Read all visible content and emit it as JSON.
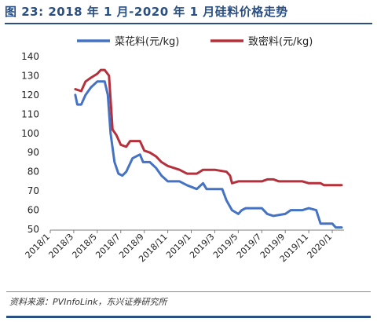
{
  "figure": {
    "title": "图 23: 2018 年 1 月-2020 年 1 月硅料价格走势",
    "source": "资料来源：PVInfoLink，东兴证券研究所"
  },
  "colors": {
    "title": "#2a4f82",
    "series_blue": "#4472c4",
    "series_red": "#b5303b"
  },
  "chart_data": {
    "type": "line",
    "title": "",
    "xlabel": "",
    "ylabel": "",
    "ylim": [
      50,
      140
    ],
    "yticks": [
      50,
      60,
      70,
      80,
      90,
      100,
      110,
      120,
      130,
      140
    ],
    "xlim": [
      "2018-01",
      "2020-02"
    ],
    "xticks": [
      "2018/1",
      "2018/3",
      "2018/5",
      "2018/7",
      "2018/9",
      "2018/11",
      "2019/1",
      "2019/3",
      "2019/5",
      "2019/7",
      "2019/9",
      "2019/11",
      "2020/1"
    ],
    "grid": false,
    "legend": "top",
    "series": [
      {
        "name": "菜花料(元/kg)",
        "color": "#4472c4",
        "points": [
          [
            "2018-03-05",
            120
          ],
          [
            "2018-03-10",
            115
          ],
          [
            "2018-03-20",
            115
          ],
          [
            "2018-04-01",
            120
          ],
          [
            "2018-04-15",
            124
          ],
          [
            "2018-05-01",
            127
          ],
          [
            "2018-05-20",
            127
          ],
          [
            "2018-05-28",
            120
          ],
          [
            "2018-06-05",
            100
          ],
          [
            "2018-06-15",
            85
          ],
          [
            "2018-06-25",
            79
          ],
          [
            "2018-07-05",
            78
          ],
          [
            "2018-07-15",
            80
          ],
          [
            "2018-08-01",
            87
          ],
          [
            "2018-08-20",
            89
          ],
          [
            "2018-08-28",
            85
          ],
          [
            "2018-09-15",
            85
          ],
          [
            "2018-10-01",
            82
          ],
          [
            "2018-10-15",
            78
          ],
          [
            "2018-11-01",
            75
          ],
          [
            "2018-12-01",
            75
          ],
          [
            "2018-12-20",
            73
          ],
          [
            "2019-01-15",
            71
          ],
          [
            "2019-02-01",
            74
          ],
          [
            "2019-02-10",
            71
          ],
          [
            "2019-03-20",
            71
          ],
          [
            "2019-04-01",
            65
          ],
          [
            "2019-04-15",
            60
          ],
          [
            "2019-05-01",
            58
          ],
          [
            "2019-05-10",
            60
          ],
          [
            "2019-05-20",
            61
          ],
          [
            "2019-07-01",
            61
          ],
          [
            "2019-07-15",
            58
          ],
          [
            "2019-08-01",
            57
          ],
          [
            "2019-09-01",
            58
          ],
          [
            "2019-09-15",
            60
          ],
          [
            "2019-10-15",
            60
          ],
          [
            "2019-11-01",
            61
          ],
          [
            "2019-11-20",
            60
          ],
          [
            "2019-12-01",
            53
          ],
          [
            "2020-01-01",
            53
          ],
          [
            "2020-01-10",
            51
          ],
          [
            "2020-01-25",
            51
          ]
        ]
      },
      {
        "name": "致密料(元/kg)",
        "color": "#b5303b",
        "points": [
          [
            "2018-03-05",
            123
          ],
          [
            "2018-03-20",
            122
          ],
          [
            "2018-04-01",
            127
          ],
          [
            "2018-04-15",
            129
          ],
          [
            "2018-05-01",
            131
          ],
          [
            "2018-05-10",
            133
          ],
          [
            "2018-05-20",
            133
          ],
          [
            "2018-06-01",
            130
          ],
          [
            "2018-06-10",
            102
          ],
          [
            "2018-06-20",
            99
          ],
          [
            "2018-07-01",
            94
          ],
          [
            "2018-07-15",
            93
          ],
          [
            "2018-07-25",
            96
          ],
          [
            "2018-08-20",
            96
          ],
          [
            "2018-09-01",
            91
          ],
          [
            "2018-09-15",
            90
          ],
          [
            "2018-10-01",
            88
          ],
          [
            "2018-10-15",
            85
          ],
          [
            "2018-11-01",
            83
          ],
          [
            "2018-12-01",
            81
          ],
          [
            "2018-12-20",
            79
          ],
          [
            "2019-01-15",
            79
          ],
          [
            "2019-02-01",
            81
          ],
          [
            "2019-03-01",
            81
          ],
          [
            "2019-04-01",
            80
          ],
          [
            "2019-04-10",
            78
          ],
          [
            "2019-04-15",
            74
          ],
          [
            "2019-05-01",
            75
          ],
          [
            "2019-07-01",
            75
          ],
          [
            "2019-07-15",
            76
          ],
          [
            "2019-08-01",
            76
          ],
          [
            "2019-08-15",
            75
          ],
          [
            "2019-10-15",
            75
          ],
          [
            "2019-11-01",
            74
          ],
          [
            "2019-12-01",
            74
          ],
          [
            "2019-12-10",
            73
          ],
          [
            "2020-01-25",
            73
          ]
        ]
      }
    ]
  }
}
